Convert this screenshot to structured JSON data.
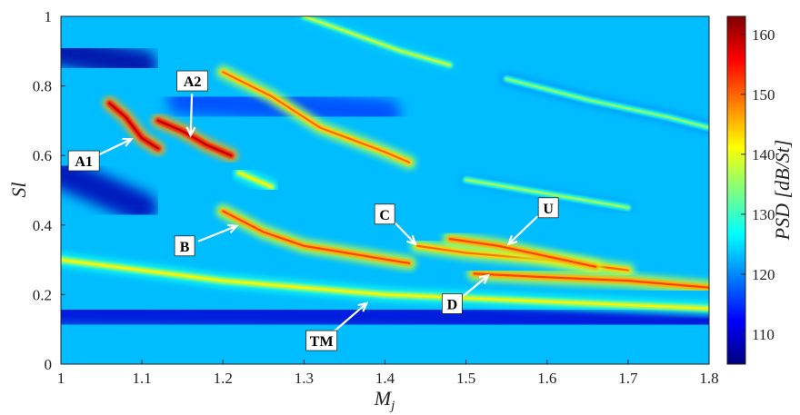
{
  "chart_data": {
    "type": "heatmap",
    "title": "",
    "xlabel": "M_j",
    "xlabel_base": "M",
    "xlabel_sub": "j",
    "ylabel": "Sl",
    "xlim": [
      1,
      1.8
    ],
    "ylim": [
      0,
      1
    ],
    "x_ticks": [
      "1",
      "1.1",
      "1.2",
      "1.3",
      "1.4",
      "1.5",
      "1.6",
      "1.7",
      "1.8"
    ],
    "y_ticks": [
      "0",
      "0.2",
      "0.4",
      "0.6",
      "0.8",
      "1"
    ],
    "colorbar": {
      "label": "PSD [dB/St]",
      "range": [
        105,
        163
      ],
      "ticks": [
        "110",
        "120",
        "130",
        "140",
        "150",
        "160"
      ],
      "colormap": [
        "#00007f",
        "#0000ff",
        "#007fff",
        "#00ffff",
        "#7fff7f",
        "#ffff00",
        "#ff7f00",
        "#ff0000",
        "#7f0000"
      ]
    },
    "background_level_db": 123,
    "bands": [
      {
        "name": "TM",
        "points": [
          [
            1.0,
            0.3
          ],
          [
            1.2,
            0.24
          ],
          [
            1.4,
            0.2
          ],
          [
            1.6,
            0.18
          ],
          [
            1.8,
            0.16
          ]
        ],
        "peak_db": 142
      },
      {
        "name": "A1",
        "points": [
          [
            1.06,
            0.75
          ],
          [
            1.08,
            0.71
          ],
          [
            1.1,
            0.65
          ],
          [
            1.12,
            0.62
          ]
        ],
        "peak_db": 160
      },
      {
        "name": "A2",
        "points": [
          [
            1.12,
            0.7
          ],
          [
            1.15,
            0.67
          ],
          [
            1.18,
            0.63
          ],
          [
            1.21,
            0.6
          ]
        ],
        "peak_db": 160
      },
      {
        "name": "B",
        "points": [
          [
            1.2,
            0.44
          ],
          [
            1.25,
            0.38
          ],
          [
            1.3,
            0.34
          ],
          [
            1.43,
            0.29
          ]
        ],
        "peak_db": 152
      },
      {
        "name": "C",
        "points": [
          [
            1.44,
            0.34
          ],
          [
            1.5,
            0.32
          ],
          [
            1.6,
            0.3
          ],
          [
            1.7,
            0.27
          ]
        ],
        "peak_db": 150
      },
      {
        "name": "U",
        "points": [
          [
            1.48,
            0.36
          ],
          [
            1.54,
            0.34
          ],
          [
            1.6,
            0.31
          ],
          [
            1.66,
            0.28
          ]
        ],
        "peak_db": 152
      },
      {
        "name": "D",
        "points": [
          [
            1.51,
            0.26
          ],
          [
            1.6,
            0.25
          ],
          [
            1.7,
            0.24
          ],
          [
            1.8,
            0.22
          ]
        ],
        "peak_db": 152
      },
      {
        "name": "",
        "points": [
          [
            1.2,
            0.84
          ],
          [
            1.26,
            0.77
          ],
          [
            1.32,
            0.68
          ],
          [
            1.4,
            0.61
          ],
          [
            1.43,
            0.58
          ]
        ],
        "peak_db": 150
      },
      {
        "name": "",
        "points": [
          [
            1.22,
            0.55
          ],
          [
            1.24,
            0.53
          ],
          [
            1.26,
            0.51
          ]
        ],
        "peak_db": 142
      },
      {
        "name": "",
        "points": [
          [
            1.3,
            1.0
          ],
          [
            1.36,
            0.95
          ],
          [
            1.42,
            0.9
          ],
          [
            1.48,
            0.86
          ]
        ],
        "peak_db": 138
      },
      {
        "name": "",
        "points": [
          [
            1.5,
            0.53
          ],
          [
            1.6,
            0.49
          ],
          [
            1.7,
            0.45
          ]
        ],
        "peak_db": 136
      },
      {
        "name": "",
        "points": [
          [
            1.55,
            0.82
          ],
          [
            1.65,
            0.76
          ],
          [
            1.75,
            0.71
          ],
          [
            1.8,
            0.68
          ]
        ],
        "peak_db": 135
      }
    ],
    "quiet_regions": [
      {
        "points": [
          [
            1.0,
            0.9
          ],
          [
            1.05,
            0.88
          ],
          [
            1.1,
            0.86
          ]
        ],
        "level_db": 107
      },
      {
        "points": [
          [
            1.0,
            0.55
          ],
          [
            1.05,
            0.5
          ],
          [
            1.1,
            0.45
          ]
        ],
        "level_db": 108
      },
      {
        "points": [
          [
            1.0,
            0.15
          ],
          [
            1.4,
            0.14
          ],
          [
            1.8,
            0.12
          ]
        ],
        "level_db": 110
      },
      {
        "points": [
          [
            1.15,
            0.76
          ],
          [
            1.3,
            0.74
          ],
          [
            1.4,
            0.72
          ]
        ],
        "level_db": 116
      }
    ],
    "annotations": [
      {
        "label": "A1",
        "x": 1.09,
        "y": 0.65
      },
      {
        "label": "A2",
        "x": 1.16,
        "y": 0.65
      },
      {
        "label": "B",
        "x": 1.22,
        "y": 0.4
      },
      {
        "label": "C",
        "x": 1.44,
        "y": 0.34
      },
      {
        "label": "U",
        "x": 1.55,
        "y": 0.34
      },
      {
        "label": "D",
        "x": 1.53,
        "y": 0.26
      },
      {
        "label": "TM",
        "x": 1.38,
        "y": 0.18
      }
    ]
  }
}
